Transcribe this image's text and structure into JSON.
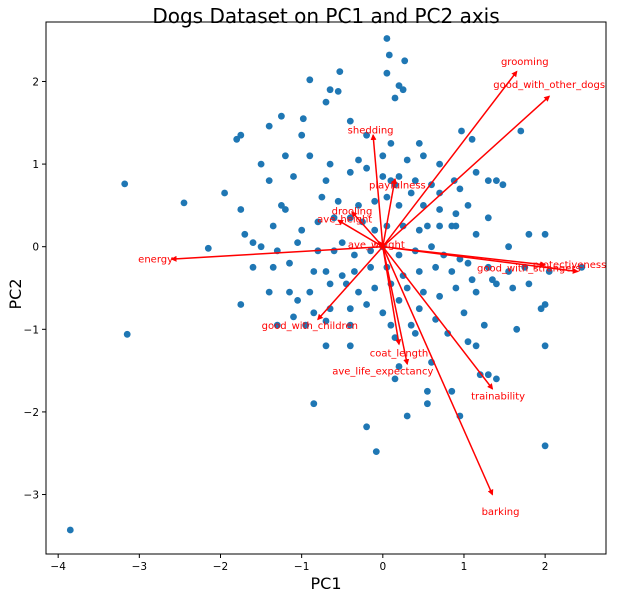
{
  "chart_data": {
    "type": "scatter",
    "title": "Dogs Dataset on PC1 and PC2 axis",
    "xlabel": "PC1",
    "ylabel": "PC2",
    "xlim": [
      -4.15,
      2.75
    ],
    "ylim": [
      -3.72,
      2.72
    ],
    "xticks": [
      -4,
      -3,
      -2,
      -1,
      0,
      1,
      2
    ],
    "yticks": [
      -3,
      -2,
      -1,
      0,
      1,
      2
    ],
    "grid": false,
    "point_color": "#1f77b4",
    "arrow_color": "#ff0000",
    "points": [
      [
        0.05,
        2.52
      ],
      [
        0.08,
        2.32
      ],
      [
        0.27,
        2.25
      ],
      [
        0.05,
        2.1
      ],
      [
        0.2,
        1.95
      ],
      [
        0.25,
        1.9
      ],
      [
        0.15,
        1.8
      ],
      [
        -0.53,
        2.12
      ],
      [
        -0.9,
        2.02
      ],
      [
        -0.65,
        1.9
      ],
      [
        -0.55,
        1.88
      ],
      [
        -0.7,
        1.75
      ],
      [
        -1.25,
        1.58
      ],
      [
        -1.4,
        1.46
      ],
      [
        -0.98,
        1.55
      ],
      [
        -1.0,
        1.35
      ],
      [
        -0.4,
        1.52
      ],
      [
        -1.75,
        1.35
      ],
      [
        -1.8,
        1.3
      ],
      [
        -0.2,
        1.35
      ],
      [
        0.1,
        1.25
      ],
      [
        0.45,
        1.25
      ],
      [
        0.97,
        1.4
      ],
      [
        1.1,
        1.3
      ],
      [
        1.7,
        1.4
      ],
      [
        -1.2,
        1.1
      ],
      [
        -0.9,
        1.1
      ],
      [
        -0.65,
        1.0
      ],
      [
        -0.3,
        1.05
      ],
      [
        0.0,
        1.1
      ],
      [
        0.3,
        1.05
      ],
      [
        0.5,
        1.1
      ],
      [
        0.7,
        1.0
      ],
      [
        1.15,
        0.9
      ],
      [
        0.88,
        0.8
      ],
      [
        1.3,
        0.8
      ],
      [
        -1.5,
        1.0
      ],
      [
        -1.4,
        0.8
      ],
      [
        -1.1,
        0.85
      ],
      [
        -0.7,
        0.8
      ],
      [
        -0.4,
        0.9
      ],
      [
        -0.2,
        0.95
      ],
      [
        0.0,
        0.85
      ],
      [
        0.1,
        0.8
      ],
      [
        0.15,
        0.75
      ],
      [
        0.2,
        0.85
      ],
      [
        0.4,
        0.8
      ],
      [
        0.6,
        0.75
      ],
      [
        0.7,
        0.65
      ],
      [
        0.95,
        0.7
      ],
      [
        1.4,
        0.8
      ],
      [
        1.48,
        0.75
      ],
      [
        -3.18,
        0.76
      ],
      [
        -2.45,
        0.53
      ],
      [
        -1.95,
        0.65
      ],
      [
        -1.75,
        0.45
      ],
      [
        -1.2,
        0.45
      ],
      [
        -1.25,
        0.5
      ],
      [
        -0.75,
        0.6
      ],
      [
        -0.55,
        0.55
      ],
      [
        -0.3,
        0.5
      ],
      [
        -0.1,
        0.55
      ],
      [
        0.05,
        0.6
      ],
      [
        0.2,
        0.5
      ],
      [
        0.35,
        0.65
      ],
      [
        0.5,
        0.5
      ],
      [
        0.7,
        0.45
      ],
      [
        0.9,
        0.4
      ],
      [
        1.05,
        0.5
      ],
      [
        1.3,
        0.35
      ],
      [
        -1.7,
        0.15
      ],
      [
        -1.35,
        0.25
      ],
      [
        -1.0,
        0.2
      ],
      [
        -0.8,
        0.3
      ],
      [
        -0.6,
        0.35
      ],
      [
        -0.4,
        0.35
      ],
      [
        -0.25,
        0.3
      ],
      [
        -0.1,
        0.2
      ],
      [
        0.05,
        0.25
      ],
      [
        0.25,
        0.25
      ],
      [
        0.45,
        0.2
      ],
      [
        0.55,
        0.25
      ],
      [
        0.7,
        0.25
      ],
      [
        0.85,
        0.25
      ],
      [
        0.9,
        0.25
      ],
      [
        1.15,
        0.15
      ],
      [
        1.55,
        0.0
      ],
      [
        1.8,
        0.15
      ],
      [
        2.0,
        0.15
      ],
      [
        -2.15,
        -0.02
      ],
      [
        -1.6,
        0.05
      ],
      [
        -1.5,
        0.0
      ],
      [
        -1.3,
        -0.05
      ],
      [
        -1.05,
        0.05
      ],
      [
        -0.8,
        -0.05
      ],
      [
        -0.6,
        -0.05
      ],
      [
        -0.5,
        0.05
      ],
      [
        -0.35,
        -0.1
      ],
      [
        -0.15,
        -0.05
      ],
      [
        0.0,
        0.0
      ],
      [
        0.2,
        -0.1
      ],
      [
        0.4,
        -0.05
      ],
      [
        0.6,
        0.0
      ],
      [
        0.75,
        -0.1
      ],
      [
        0.95,
        -0.15
      ],
      [
        1.05,
        -0.2
      ],
      [
        1.3,
        -0.25
      ],
      [
        1.55,
        -0.3
      ],
      [
        1.75,
        -0.25
      ],
      [
        2.05,
        -0.3
      ],
      [
        2.45,
        -0.25
      ],
      [
        -1.6,
        -0.25
      ],
      [
        -1.35,
        -0.25
      ],
      [
        -1.15,
        -0.2
      ],
      [
        -0.85,
        -0.3
      ],
      [
        -0.7,
        -0.3
      ],
      [
        -0.5,
        -0.35
      ],
      [
        -0.35,
        -0.3
      ],
      [
        -0.15,
        -0.25
      ],
      [
        0.05,
        -0.25
      ],
      [
        0.25,
        -0.35
      ],
      [
        0.45,
        -0.3
      ],
      [
        0.65,
        -0.25
      ],
      [
        0.85,
        -0.3
      ],
      [
        1.1,
        -0.4
      ],
      [
        1.35,
        -0.4
      ],
      [
        1.4,
        -0.45
      ],
      [
        1.95,
        -0.75
      ],
      [
        2.0,
        -0.7
      ],
      [
        1.6,
        -0.5
      ],
      [
        1.8,
        -0.45
      ],
      [
        -1.75,
        -0.7
      ],
      [
        -1.4,
        -0.55
      ],
      [
        -1.15,
        -0.55
      ],
      [
        -1.05,
        -0.65
      ],
      [
        -0.9,
        -0.55
      ],
      [
        -0.65,
        -0.45
      ],
      [
        -0.45,
        -0.45
      ],
      [
        -0.3,
        -0.55
      ],
      [
        -0.1,
        -0.5
      ],
      [
        0.1,
        -0.45
      ],
      [
        0.3,
        -0.5
      ],
      [
        0.5,
        -0.55
      ],
      [
        0.7,
        -0.6
      ],
      [
        0.9,
        -0.5
      ],
      [
        1.15,
        -0.55
      ],
      [
        -1.1,
        -0.85
      ],
      [
        -0.85,
        -0.8
      ],
      [
        -0.65,
        -0.75
      ],
      [
        -0.4,
        -0.75
      ],
      [
        -0.2,
        -0.7
      ],
      [
        0.0,
        -0.8
      ],
      [
        0.2,
        -0.65
      ],
      [
        0.45,
        -0.75
      ],
      [
        0.65,
        -0.88
      ],
      [
        1.0,
        -0.8
      ],
      [
        1.25,
        -0.95
      ],
      [
        1.65,
        -1.0
      ],
      [
        -1.3,
        -0.95
      ],
      [
        -0.95,
        -0.95
      ],
      [
        -0.7,
        -0.9
      ],
      [
        -0.4,
        -0.95
      ],
      [
        0.1,
        -0.95
      ],
      [
        0.35,
        -0.95
      ],
      [
        0.8,
        -1.05
      ],
      [
        1.05,
        -1.15
      ],
      [
        1.15,
        -1.2
      ],
      [
        -3.15,
        -1.06
      ],
      [
        -0.7,
        -1.2
      ],
      [
        -0.4,
        -1.2
      ],
      [
        0.15,
        -1.1
      ],
      [
        0.4,
        -1.05
      ],
      [
        2.0,
        -1.2
      ],
      [
        0.2,
        -1.45
      ],
      [
        0.6,
        -1.4
      ],
      [
        1.2,
        -1.55
      ],
      [
        1.3,
        -1.55
      ],
      [
        1.4,
        -1.6
      ],
      [
        -0.85,
        -1.9
      ],
      [
        0.15,
        -1.6
      ],
      [
        0.55,
        -1.75
      ],
      [
        0.85,
        -1.75
      ],
      [
        0.55,
        -1.9
      ],
      [
        0.3,
        -2.05
      ],
      [
        0.95,
        -2.05
      ],
      [
        -0.2,
        -2.18
      ],
      [
        2.0,
        -2.41
      ],
      [
        -0.08,
        -2.48
      ],
      [
        -3.85,
        -3.43
      ]
    ],
    "loadings": [
      {
        "name": "grooming",
        "x": 1.65,
        "y": 2.12,
        "label_x": 1.75,
        "label_y": 2.25
      },
      {
        "name": "good_with_other_dogs",
        "x": 2.05,
        "y": 1.82,
        "label_x": 2.05,
        "label_y": 1.97
      },
      {
        "name": "shedding",
        "x": -0.12,
        "y": 1.35,
        "label_x": -0.15,
        "label_y": 1.42
      },
      {
        "name": "playfulness",
        "x": 0.15,
        "y": 0.82,
        "label_x": 0.18,
        "label_y": 0.75
      },
      {
        "name": "drooling",
        "x": -0.38,
        "y": 0.42,
        "label_x": -0.38,
        "label_y": 0.44
      },
      {
        "name": "ave_height",
        "x": -0.55,
        "y": 0.32,
        "label_x": -0.47,
        "label_y": 0.34
      },
      {
        "name": "ave_weight",
        "x": -0.05,
        "y": 0.06,
        "label_x": -0.08,
        "label_y": 0.03
      },
      {
        "name": "energy",
        "x": -2.6,
        "y": -0.15,
        "label_x": -2.8,
        "label_y": -0.14
      },
      {
        "name": "protectiveness",
        "x": 2.4,
        "y": -0.3,
        "label_x": 2.3,
        "label_y": -0.21
      },
      {
        "name": "good_with_strangers",
        "x": 2.0,
        "y": -0.22,
        "label_x": 1.8,
        "label_y": -0.25
      },
      {
        "name": "good_with_children",
        "x": -0.8,
        "y": -0.88,
        "label_x": -0.9,
        "label_y": -0.95
      },
      {
        "name": "coat_length",
        "x": 0.2,
        "y": -1.18,
        "label_x": 0.2,
        "label_y": -1.28
      },
      {
        "name": "ave_life_expectancy",
        "x": 0.3,
        "y": -1.42,
        "label_x": 0.0,
        "label_y": -1.5
      },
      {
        "name": "trainability",
        "x": 1.35,
        "y": -1.72,
        "label_x": 1.42,
        "label_y": -1.8
      },
      {
        "name": "barking",
        "x": 1.35,
        "y": -3.0,
        "label_x": 1.45,
        "label_y": -3.2
      }
    ]
  }
}
